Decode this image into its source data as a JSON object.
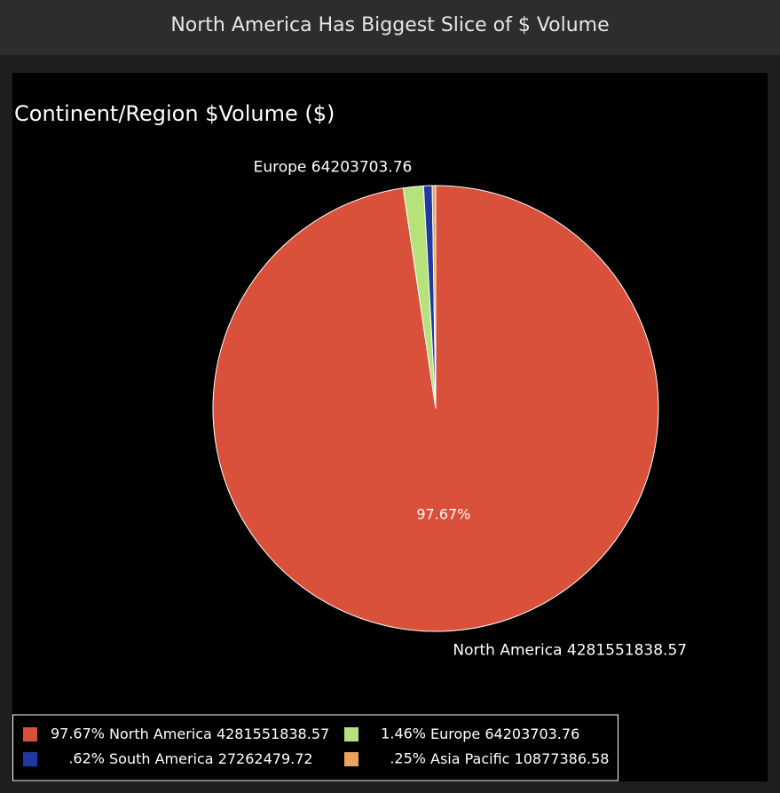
{
  "header": {
    "title": "North America Has Biggest Slice of $ Volume"
  },
  "chart_data": {
    "type": "pie",
    "title": "Continent/Region $Volume ($)",
    "categories": [
      "North America",
      "Europe",
      "South America",
      "Asia Pacific"
    ],
    "values": [
      4281551838.57,
      64203703.76,
      27262479.72,
      10877386.58
    ],
    "percent_labels": [
      "97.67%",
      "1.46%",
      ".62%",
      ".25%"
    ],
    "colors": [
      "#d9503b",
      "#b5e37a",
      "#1f3a9e",
      "#e8a560"
    ],
    "legend": "bottom-left"
  }
}
